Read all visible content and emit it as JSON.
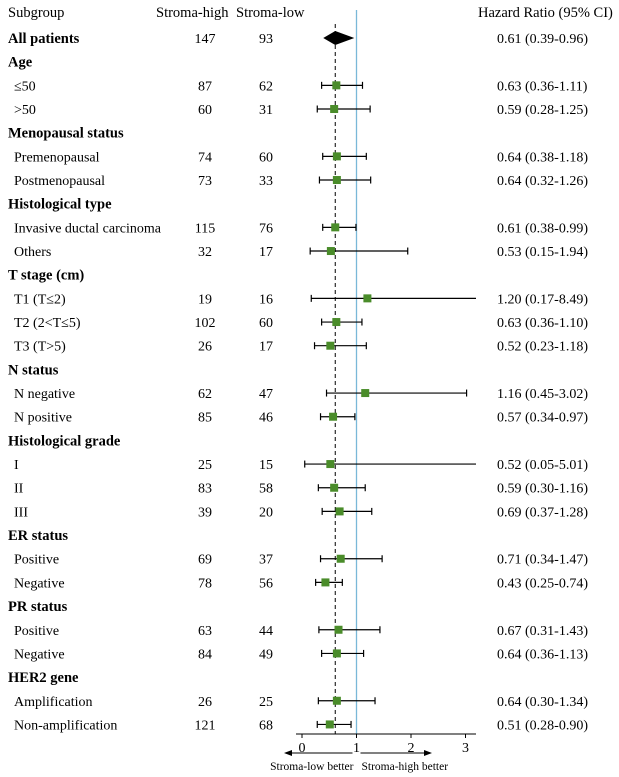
{
  "chart_data": {
    "type": "forest",
    "headers": {
      "subgroup": "Subgroup",
      "stroma_high": "Stroma-high",
      "stroma_low": "Stroma-low",
      "hr": "Hazard Ratio (95% CI)"
    },
    "xaxis": {
      "ticks": [
        0,
        1,
        2,
        3
      ],
      "tick_labels": [
        "0",
        "1",
        "2",
        "3"
      ],
      "xlim": [
        0,
        3.15
      ],
      "reference_line": 1,
      "overall_line": 0.61,
      "left_label": "Stroma-low better",
      "right_label": "Stroma-high better"
    },
    "colors": {
      "marker": "#4a8c2a",
      "reference": "#7ab8d8",
      "overall_diamond": "#000000"
    },
    "rows": [
      {
        "label": "All patients",
        "kind": "overall",
        "high": "147",
        "low": "93",
        "hr": 0.61,
        "lo": 0.39,
        "hi": 0.96,
        "hr_text": "0.61 (0.39-0.96)"
      },
      {
        "label": "Age",
        "kind": "category"
      },
      {
        "label": "≤50",
        "kind": "item",
        "high": "87",
        "low": "62",
        "hr": 0.63,
        "lo": 0.36,
        "hi": 1.11,
        "hr_text": "0.63 (0.36-1.11)"
      },
      {
        "label": ">50",
        "kind": "item",
        "high": "60",
        "low": "31",
        "hr": 0.59,
        "lo": 0.28,
        "hi": 1.25,
        "hr_text": "0.59 (0.28-1.25)"
      },
      {
        "label": "Menopausal status",
        "kind": "category"
      },
      {
        "label": "Premenopausal",
        "kind": "item",
        "high": "74",
        "low": "60",
        "hr": 0.64,
        "lo": 0.38,
        "hi": 1.18,
        "hr_text": "0.64 (0.38-1.18)"
      },
      {
        "label": "Postmenopausal",
        "kind": "item",
        "high": "73",
        "low": "33",
        "hr": 0.64,
        "lo": 0.32,
        "hi": 1.26,
        "hr_text": "0.64 (0.32-1.26)"
      },
      {
        "label": "Histological type",
        "kind": "category"
      },
      {
        "label": "Invasive ductal carcinoma",
        "kind": "item",
        "high": "115",
        "low": "76",
        "hr": 0.61,
        "lo": 0.38,
        "hi": 0.99,
        "hr_text": "0.61 (0.38-0.99)"
      },
      {
        "label": "Others",
        "kind": "item",
        "high": "32",
        "low": "17",
        "hr": 0.53,
        "lo": 0.15,
        "hi": 1.94,
        "hr_text": "0.53 (0.15-1.94)"
      },
      {
        "label": "T stage (cm)",
        "kind": "category"
      },
      {
        "label": "T1 (T≤2)",
        "kind": "item",
        "high": "19",
        "low": "16",
        "hr": 1.2,
        "lo": 0.17,
        "hi": 8.49,
        "hr_text": "1.20 (0.17-8.49)"
      },
      {
        "label": "T2 (2<T≤5)",
        "kind": "item",
        "high": "102",
        "low": "60",
        "hr": 0.63,
        "lo": 0.36,
        "hi": 1.1,
        "hr_text": "0.63 (0.36-1.10)"
      },
      {
        "label": "T3 (T>5)",
        "kind": "item",
        "high": "26",
        "low": "17",
        "hr": 0.52,
        "lo": 0.23,
        "hi": 1.18,
        "hr_text": "0.52 (0.23-1.18)"
      },
      {
        "label": "N status",
        "kind": "category"
      },
      {
        "label": "N negative",
        "kind": "item",
        "high": "62",
        "low": "47",
        "hr": 1.16,
        "lo": 0.45,
        "hi": 3.02,
        "hr_text": "1.16 (0.45-3.02)"
      },
      {
        "label": "N positive",
        "kind": "item",
        "high": "85",
        "low": "46",
        "hr": 0.57,
        "lo": 0.34,
        "hi": 0.97,
        "hr_text": "0.57 (0.34-0.97)"
      },
      {
        "label": "Histological grade",
        "kind": "category"
      },
      {
        "label": "I",
        "kind": "item",
        "high": "25",
        "low": "15",
        "hr": 0.52,
        "lo": 0.05,
        "hi": 5.01,
        "hr_text": "0.52 (0.05-5.01)"
      },
      {
        "label": "II",
        "kind": "item",
        "high": "83",
        "low": "58",
        "hr": 0.59,
        "lo": 0.3,
        "hi": 1.16,
        "hr_text": "0.59 (0.30-1.16)"
      },
      {
        "label": "III",
        "kind": "item",
        "high": "39",
        "low": "20",
        "hr": 0.69,
        "lo": 0.37,
        "hi": 1.28,
        "hr_text": "0.69 (0.37-1.28)"
      },
      {
        "label": "ER status",
        "kind": "category"
      },
      {
        "label": "Positive",
        "kind": "item",
        "high": "69",
        "low": "37",
        "hr": 0.71,
        "lo": 0.34,
        "hi": 1.47,
        "hr_text": "0.71 (0.34-1.47)"
      },
      {
        "label": "Negative",
        "kind": "item",
        "high": "78",
        "low": "56",
        "hr": 0.43,
        "lo": 0.25,
        "hi": 0.74,
        "hr_text": "0.43 (0.25-0.74)"
      },
      {
        "label": "PR status",
        "kind": "category"
      },
      {
        "label": "Positive",
        "kind": "item",
        "high": "63",
        "low": "44",
        "hr": 0.67,
        "lo": 0.31,
        "hi": 1.43,
        "hr_text": "0.67 (0.31-1.43)"
      },
      {
        "label": "Negative",
        "kind": "item",
        "high": "84",
        "low": "49",
        "hr": 0.64,
        "lo": 0.36,
        "hi": 1.13,
        "hr_text": "0.64 (0.36-1.13)"
      },
      {
        "label": "HER2 gene",
        "kind": "category"
      },
      {
        "label": "Amplification",
        "kind": "item",
        "high": "26",
        "low": "25",
        "hr": 0.64,
        "lo": 0.3,
        "hi": 1.34,
        "hr_text": "0.64 (0.30-1.34)"
      },
      {
        "label": "Non-amplification",
        "kind": "item",
        "high": "121",
        "low": "68",
        "hr": 0.51,
        "lo": 0.28,
        "hi": 0.9,
        "hr_text": "0.51 (0.28-0.90)"
      }
    ]
  }
}
